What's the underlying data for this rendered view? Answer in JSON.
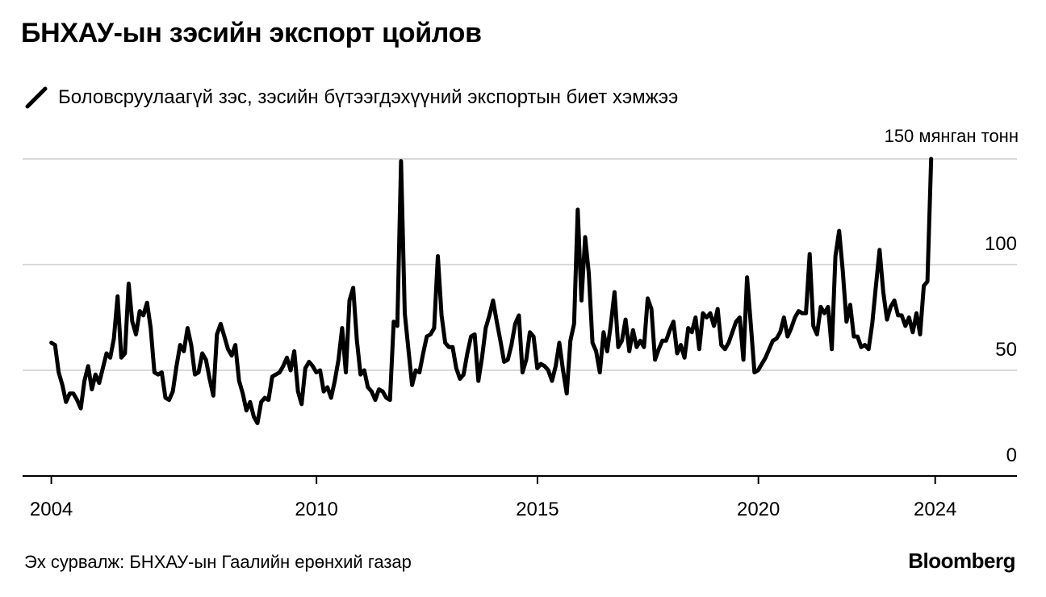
{
  "title": "БНХАУ-ын зэсийн экспорт цойлов",
  "legend": {
    "label": "Боловсруулаагүй зэс, зэсийн бүтээгдэхүүний экспортын биет хэмжээ",
    "icon": "line-swatch-icon"
  },
  "source": "Эх сурвалж: БНХАУ-ын Гаалийн ерөнхий газар",
  "brand": "Bloomberg",
  "colors": {
    "line": "#000000",
    "grid": "#d9d9d9",
    "axis": "#000000"
  },
  "chart_data": {
    "type": "line",
    "title": "БНХАУ-ын зэсийн экспорт цойлов",
    "xlabel": "",
    "ylabel": "",
    "y_unit_label": "150 мянган тонн",
    "ylim": [
      0,
      150
    ],
    "xlim": [
      2003.35,
      2025.85
    ],
    "grid": true,
    "y_ticks": [
      {
        "value": 0,
        "label": "0"
      },
      {
        "value": 50,
        "label": "50"
      },
      {
        "value": 100,
        "label": "100"
      }
    ],
    "x_ticks": [
      {
        "value": 2004,
        "label": "2004"
      },
      {
        "value": 2010,
        "label": "2010"
      },
      {
        "value": 2015,
        "label": "2015"
      },
      {
        "value": 2020,
        "label": "2020"
      },
      {
        "value": 2024,
        "label": "2024"
      }
    ],
    "series": [
      {
        "name": "Боловсруулаагүй зэс, зэсийн бүтээгдэхүүний экспортын биет хэмжээ",
        "x_start": 2004.0,
        "step": 0.0833,
        "values": [
          63,
          62,
          49,
          43,
          35,
          39,
          39,
          36,
          32,
          45,
          52,
          41,
          48,
          44,
          51,
          58,
          56,
          65,
          85,
          56,
          58,
          91,
          73,
          67,
          78,
          76,
          82,
          70,
          49,
          48,
          49,
          37,
          36,
          40,
          52,
          62,
          59,
          70,
          62,
          48,
          49,
          58,
          55,
          46,
          38,
          67,
          72,
          66,
          60,
          57,
          62,
          45,
          39,
          31,
          35,
          28,
          25,
          35,
          37,
          36,
          47,
          48,
          49,
          52,
          56,
          50,
          59,
          40,
          34,
          51,
          54,
          52,
          49,
          50,
          40,
          42,
          37,
          45,
          55,
          70,
          49,
          83,
          89,
          64,
          48,
          50,
          42,
          40,
          36,
          41,
          40,
          37,
          36,
          73,
          71,
          149,
          77,
          60,
          43,
          50,
          49,
          58,
          66,
          67,
          70,
          104,
          76,
          63,
          61,
          61,
          51,
          46,
          48,
          58,
          66,
          67,
          45,
          56,
          70,
          76,
          83,
          73,
          64,
          54,
          55,
          62,
          72,
          76,
          49,
          55,
          68,
          66,
          51,
          53,
          52,
          50,
          45,
          52,
          63,
          50,
          39,
          64,
          72,
          126,
          83,
          113,
          96,
          63,
          59,
          49,
          68,
          59,
          72,
          87,
          61,
          64,
          74,
          59,
          69,
          61,
          64,
          61,
          84,
          79,
          55,
          60,
          64,
          64,
          69,
          73,
          58,
          62,
          56,
          70,
          68,
          75,
          60,
          77,
          75,
          77,
          71,
          79,
          62,
          60,
          63,
          68,
          73,
          75,
          55,
          94,
          72,
          49,
          50,
          53,
          56,
          60,
          64,
          65,
          68,
          75,
          66,
          70,
          75,
          78,
          77,
          77,
          105,
          71,
          67,
          80,
          77,
          80,
          60,
          104,
          116,
          97,
          73,
          81,
          66,
          66,
          61,
          62,
          60,
          72,
          90,
          107,
          87,
          74,
          80,
          83,
          76,
          76,
          71,
          75,
          68,
          77,
          67,
          90,
          92,
          150
        ]
      }
    ]
  }
}
